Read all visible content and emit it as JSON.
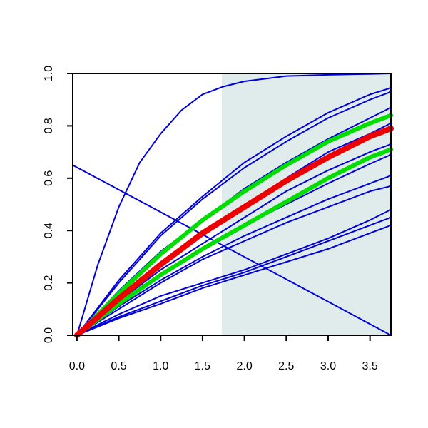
{
  "chart_data": {
    "type": "line",
    "title": "",
    "xlabel": "",
    "ylabel": "",
    "xlim": [
      -0.05,
      3.75
    ],
    "ylim": [
      0,
      1
    ],
    "grid": false,
    "legend": "none",
    "x_ticks": [
      {
        "value": 0.0,
        "label": "0.0"
      },
      {
        "value": 0.5,
        "label": "0.5"
      },
      {
        "value": 1.0,
        "label": "1.0"
      },
      {
        "value": 1.5,
        "label": "1.5"
      },
      {
        "value": 2.0,
        "label": "2.0"
      },
      {
        "value": 2.5,
        "label": "2.5"
      },
      {
        "value": 3.0,
        "label": "3.0"
      },
      {
        "value": 3.5,
        "label": "3.5"
      }
    ],
    "y_ticks": [
      {
        "value": 0.0,
        "label": "0.0"
      },
      {
        "value": 0.2,
        "label": "0.2"
      },
      {
        "value": 0.4,
        "label": "0.4"
      },
      {
        "value": 0.6,
        "label": "0.6"
      },
      {
        "value": 0.8,
        "label": "0.8"
      },
      {
        "value": 1.0,
        "label": "1.0"
      }
    ],
    "shaded_region": {
      "x_start": 1.73,
      "x_end": 3.75,
      "color": "#e0ecec"
    },
    "series": [
      {
        "color": "#0000dd",
        "width": 2,
        "x": [
          0,
          0.25,
          0.5,
          0.75,
          1.0,
          1.25,
          1.5,
          1.75,
          2.0,
          2.5,
          3.0,
          3.5,
          3.75
        ],
        "y": [
          0,
          0.27,
          0.49,
          0.66,
          0.77,
          0.86,
          0.92,
          0.95,
          0.97,
          0.99,
          0.995,
          0.998,
          1.0
        ]
      },
      {
        "color": "#0000dd",
        "width": 2,
        "x": [
          -0.05,
          3.75
        ],
        "y": [
          0.65,
          0.0
        ]
      },
      {
        "color": "#0000dd",
        "width": 2,
        "x": [
          0,
          0.5,
          1.0,
          1.5,
          2.0,
          2.5,
          3.0,
          3.5,
          3.75
        ],
        "y": [
          0,
          0.21,
          0.39,
          0.53,
          0.66,
          0.76,
          0.85,
          0.92,
          0.945
        ]
      },
      {
        "color": "#0000dd",
        "width": 2,
        "x": [
          0,
          0.5,
          1.0,
          1.5,
          2.0,
          2.5,
          3.0,
          3.5,
          3.75
        ],
        "y": [
          0,
          0.2,
          0.38,
          0.52,
          0.64,
          0.74,
          0.83,
          0.9,
          0.93
        ]
      },
      {
        "color": "#0000dd",
        "width": 2,
        "x": [
          0,
          0.5,
          1.0,
          1.5,
          2.0,
          2.5,
          3.0,
          3.5,
          3.75
        ],
        "y": [
          0,
          0.17,
          0.32,
          0.44,
          0.56,
          0.66,
          0.75,
          0.83,
          0.87
        ]
      },
      {
        "color": "#0000dd",
        "width": 2,
        "x": [
          0,
          0.5,
          1.0,
          1.5,
          2.0,
          2.5,
          3.0,
          3.5,
          3.75
        ],
        "y": [
          0,
          0.15,
          0.28,
          0.39,
          0.49,
          0.6,
          0.7,
          0.77,
          0.81
        ]
      },
      {
        "color": "#0000dd",
        "width": 2,
        "x": [
          0,
          0.5,
          1.0,
          1.5,
          2.0,
          2.5,
          3.0,
          3.5,
          3.75
        ],
        "y": [
          0,
          0.13,
          0.25,
          0.35,
          0.45,
          0.55,
          0.63,
          0.7,
          0.73
        ]
      },
      {
        "color": "#0000dd",
        "width": 2,
        "x": [
          0,
          0.5,
          1.0,
          1.5,
          2.0,
          2.5,
          3.0,
          3.5,
          3.75
        ],
        "y": [
          0,
          0.12,
          0.23,
          0.33,
          0.42,
          0.5,
          0.58,
          0.655,
          0.69
        ]
      },
      {
        "color": "#0000dd",
        "width": 2,
        "x": [
          0,
          0.5,
          1.0,
          1.5,
          2.0,
          2.5,
          3.0,
          3.5,
          3.75
        ],
        "y": [
          0,
          0.11,
          0.21,
          0.3,
          0.38,
          0.45,
          0.52,
          0.58,
          0.61
        ]
      },
      {
        "color": "#0000dd",
        "width": 2,
        "x": [
          0,
          0.5,
          1.0,
          1.5,
          2.0,
          2.5,
          3.0,
          3.5,
          3.75
        ],
        "y": [
          0,
          0.1,
          0.2,
          0.29,
          0.36,
          0.43,
          0.49,
          0.55,
          0.57
        ]
      },
      {
        "color": "#0000dd",
        "width": 2,
        "x": [
          0,
          0.5,
          1.0,
          1.5,
          2.0,
          2.5,
          3.0,
          3.5,
          3.75
        ],
        "y": [
          0,
          0.08,
          0.15,
          0.2,
          0.25,
          0.31,
          0.37,
          0.44,
          0.48
        ]
      },
      {
        "color": "#0000dd",
        "width": 2,
        "x": [
          0,
          0.5,
          1.0,
          1.5,
          2.0,
          2.5,
          3.0,
          3.5,
          3.75
        ],
        "y": [
          0,
          0.07,
          0.13,
          0.19,
          0.24,
          0.3,
          0.36,
          0.42,
          0.45
        ]
      },
      {
        "color": "#0000dd",
        "width": 2,
        "x": [
          0,
          0.5,
          1.0,
          1.5,
          2.0,
          2.5,
          3.0,
          3.5,
          3.75
        ],
        "y": [
          0,
          0.065,
          0.12,
          0.18,
          0.23,
          0.28,
          0.33,
          0.39,
          0.42
        ]
      },
      {
        "color": "#00dd00",
        "width": 6,
        "x": [
          0,
          0.5,
          1.0,
          1.5,
          2.0,
          2.5,
          3.0,
          3.5,
          3.75
        ],
        "y": [
          0,
          0.16,
          0.31,
          0.44,
          0.55,
          0.65,
          0.74,
          0.81,
          0.84
        ]
      },
      {
        "color": "#00dd00",
        "width": 6,
        "x": [
          0,
          0.5,
          1.0,
          1.5,
          2.0,
          2.5,
          3.0,
          3.5,
          3.75
        ],
        "y": [
          0,
          0.12,
          0.23,
          0.33,
          0.42,
          0.51,
          0.6,
          0.68,
          0.71
        ]
      },
      {
        "color": "#ee0000",
        "width": 8,
        "x": [
          0,
          0.5,
          1.0,
          1.5,
          2.0,
          2.5,
          3.0,
          3.5,
          3.75
        ],
        "y": [
          0,
          0.14,
          0.27,
          0.39,
          0.49,
          0.59,
          0.68,
          0.76,
          0.79
        ]
      }
    ]
  }
}
